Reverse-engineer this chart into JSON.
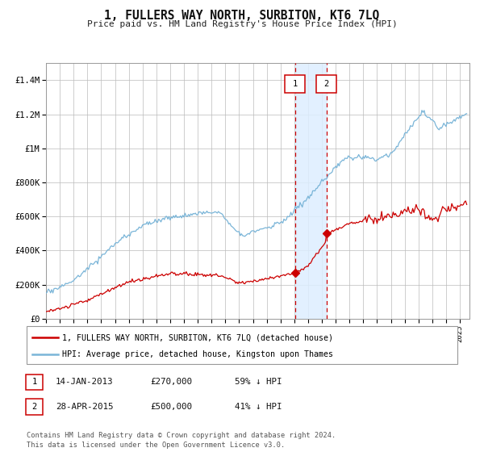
{
  "title": "1, FULLERS WAY NORTH, SURBITON, KT6 7LQ",
  "subtitle": "Price paid vs. HM Land Registry's House Price Index (HPI)",
  "ylim": [
    0,
    1500000
  ],
  "xlim_start": 1995.0,
  "xlim_end": 2025.7,
  "hpi_color": "#7ab5d8",
  "price_color": "#cc0000",
  "shade_color": "#ddeeff",
  "purchase1_date": 2013.04,
  "purchase1_price": 270000,
  "purchase2_date": 2015.33,
  "purchase2_price": 500000,
  "legend_entry1": "1, FULLERS WAY NORTH, SURBITON, KT6 7LQ (detached house)",
  "legend_entry2": "HPI: Average price, detached house, Kingston upon Thames",
  "table_row1_label": "1",
  "table_row1_date": "14-JAN-2013",
  "table_row1_price": "£270,000",
  "table_row1_hpi": "59% ↓ HPI",
  "table_row2_label": "2",
  "table_row2_date": "28-APR-2015",
  "table_row2_price": "£500,000",
  "table_row2_hpi": "41% ↓ HPI",
  "footer": "Contains HM Land Registry data © Crown copyright and database right 2024.\nThis data is licensed under the Open Government Licence v3.0.",
  "background_color": "#ffffff",
  "grid_color": "#bbbbbb",
  "ytick_labels": [
    "£0",
    "£200K",
    "£400K",
    "£600K",
    "£800K",
    "£1M",
    "£1.2M",
    "£1.4M"
  ],
  "ytick_values": [
    0,
    200000,
    400000,
    600000,
    800000,
    1000000,
    1200000,
    1400000
  ]
}
